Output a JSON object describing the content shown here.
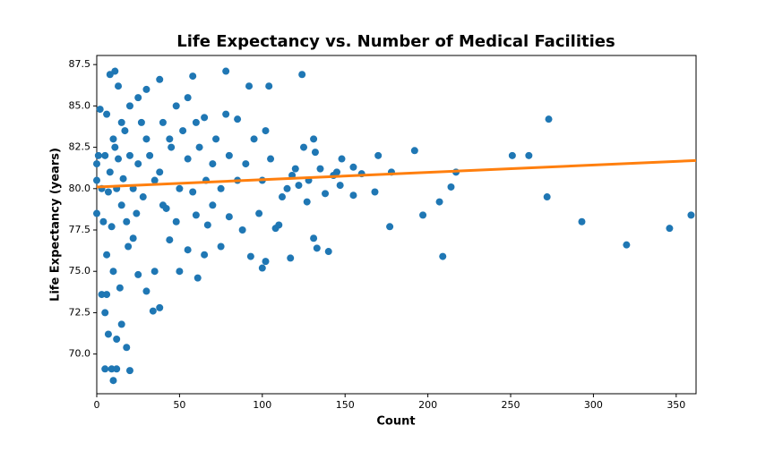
{
  "chart_data": {
    "type": "scatter",
    "title": "Life Expectancy vs. Number of Medical Facilities",
    "xlabel": "Count",
    "ylabel": "Life Expectancy (years)",
    "color": "#1f77b4",
    "x": [
      273,
      251,
      261,
      272,
      293,
      320,
      346,
      359,
      209,
      214,
      217,
      207,
      197,
      192,
      177,
      178,
      170,
      168,
      160,
      155,
      155,
      148,
      147,
      140,
      133,
      131,
      132,
      131,
      125,
      124,
      127,
      100,
      102,
      93,
      92,
      104,
      78,
      58,
      11,
      8,
      13,
      10,
      20,
      5,
      9,
      12,
      18,
      12,
      7,
      15,
      38,
      34,
      5,
      6,
      61,
      3,
      117,
      108,
      110,
      118,
      120,
      135,
      145,
      115,
      88,
      65,
      75,
      50,
      55,
      44,
      42,
      60,
      70,
      80,
      85,
      90,
      95,
      100,
      85,
      78,
      65,
      55,
      48,
      38,
      30,
      25,
      20,
      15,
      10,
      5,
      8,
      12,
      15,
      18,
      22,
      6,
      10,
      14,
      25,
      30,
      35,
      20,
      22,
      25,
      28,
      30,
      32,
      35,
      38,
      40,
      45,
      50,
      52,
      55,
      58,
      62,
      66,
      70,
      72,
      75,
      80,
      3,
      4,
      6,
      7,
      9,
      11,
      13,
      16,
      17,
      19,
      24,
      27,
      40,
      44,
      48,
      60,
      67,
      102,
      105,
      98,
      112,
      122,
      128,
      138,
      143,
      0,
      1,
      0,
      2,
      0
    ],
    "y": [
      84.2,
      82,
      82,
      79.5,
      78,
      76.6,
      77.6,
      78.4,
      75.9,
      80.1,
      81,
      79.2,
      78.4,
      82.3,
      77.7,
      81,
      82,
      79.8,
      80.9,
      81.3,
      79.6,
      81.8,
      80.2,
      76.2,
      76.4,
      77,
      82.2,
      83,
      82.5,
      86.9,
      79.2,
      75.2,
      75.6,
      75.9,
      86.2,
      86.2,
      87.1,
      86.8,
      87.1,
      86.9,
      86.2,
      68.4,
      69,
      69.1,
      69.1,
      69.1,
      70.4,
      70.9,
      71.2,
      71.8,
      72.8,
      72.6,
      72.5,
      73.6,
      74.6,
      73.6,
      75.8,
      77.6,
      77.8,
      80.8,
      81.2,
      81.2,
      81,
      80,
      77.5,
      76,
      76.5,
      75,
      76.3,
      76.9,
      78.8,
      78.4,
      79,
      78.3,
      80.5,
      81.5,
      83,
      80.5,
      84.2,
      84.5,
      84.3,
      85.5,
      85,
      86.6,
      86,
      85.5,
      85,
      84,
      83,
      82,
      81,
      80,
      79,
      78,
      77,
      76,
      75,
      74,
      74.8,
      73.8,
      75,
      82,
      80,
      81.5,
      79.5,
      83,
      82,
      80.5,
      81,
      79,
      82.5,
      80,
      83.5,
      81.8,
      79.8,
      82.5,
      80.5,
      81.5,
      83,
      80,
      82,
      80,
      78,
      84.5,
      79.8,
      77.7,
      82.5,
      81.8,
      80.6,
      83.5,
      76.5,
      78.5,
      84,
      84,
      83,
      78,
      84,
      77.8,
      83.5,
      81.8,
      78.5,
      79.5,
      80.2,
      80.5,
      79.7,
      80.8,
      80.5,
      82,
      78.5,
      84.8,
      81.5
    ],
    "trend": {
      "color": "#ff7f0e",
      "x": [
        0,
        362
      ],
      "values": [
        80.1,
        81.7
      ]
    },
    "xlim": [
      0,
      362
    ],
    "ylim": [
      67.6,
      88.05
    ],
    "xticks": [
      0,
      50,
      100,
      150,
      200,
      250,
      300,
      350
    ],
    "yticks": [
      {
        "value": 70,
        "label": "70.0"
      },
      72.5,
      {
        "value": 75,
        "label": "75.0"
      },
      77.5,
      {
        "value": 80,
        "label": "80.0"
      },
      82.5,
      {
        "value": 85,
        "label": "85.0"
      },
      87.5
    ]
  }
}
